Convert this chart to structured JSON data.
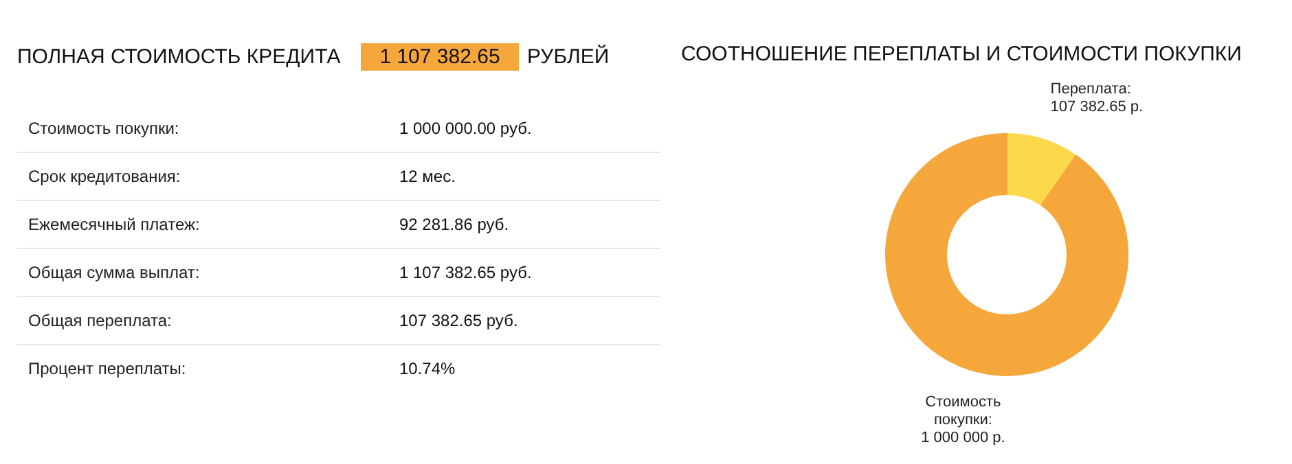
{
  "chart_data": [
    {
      "type": "other",
      "title": "ПОЛНАЯ СТОИМОСТЬ КРЕДИТА",
      "annotations": [
        "1 107 382.65",
        "РУБЛЕЙ",
        ":"
      ],
      "categories": [
        "Стоимость покупки",
        "Срок кредитования",
        "Ежемесячный платеж",
        "Общая сумма выплат",
        "Общая переплата",
        "Процент переплаты"
      ],
      "value_labels": [
        "1 000 000.00 руб.",
        "12 мес.",
        "92 281.86 руб.",
        "1 107 382.65 руб.",
        "107 382.65 руб.",
        "10.74%"
      ],
      "color": "#f6a73b"
    },
    {
      "type": "donut",
      "annotations": [
        ":"
      ],
      "title": "СООТНОШЕНИЕ ПЕРЕПЛАТЫ И СТОИМОСТИ ПОКУПКИ",
      "categories": [
        "Переплата",
        "Стоимость покупки"
      ],
      "values": [
        107382.65,
        1000000
      ],
      "value_labels": [
        "107 382.65 р.",
        "1 000 000 р."
      ],
      "colors": [
        "#fcd84b",
        "#f6a73b"
      ]
    }
  ]
}
